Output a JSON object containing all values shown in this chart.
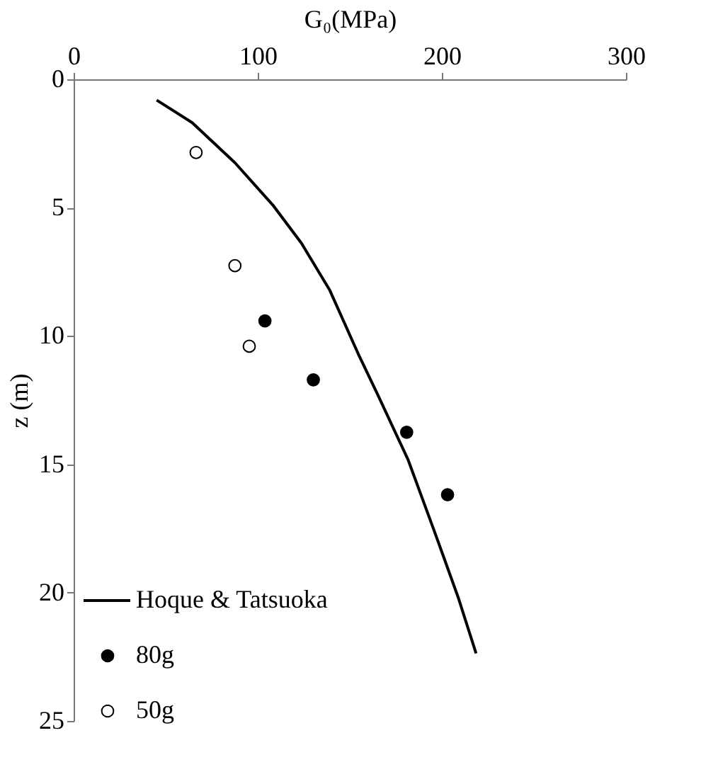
{
  "chart_data": {
    "type": "scatter",
    "xlabel": "G₀(MPa)",
    "ylabel": "z (m)",
    "xlim": [
      0,
      300
    ],
    "xticks": [
      0,
      100,
      200,
      300
    ],
    "ylim": [
      25,
      0
    ],
    "yticks": [
      0,
      5,
      10,
      15,
      20,
      25
    ],
    "grid": false,
    "legend": "bottom left",
    "series": [
      {
        "name": "Hoque & Tatsuoka",
        "type": "line",
        "color": "#000000",
        "line_style": "solid",
        "x": [
          45.1,
          64.4,
          87.6,
          108.2,
          123.7,
          139,
          154.6,
          165,
          181.7,
          195.9,
          208.8,
          218.6
        ],
        "values": [
          0.81,
          1.69,
          3.25,
          4.9,
          6.38,
          8.2,
          10.7,
          12.26,
          14.83,
          17.6,
          20.17,
          22.37
        ]
      },
      {
        "name": "80g",
        "marker": "circle",
        "color": "#000000",
        "x": [
          103.9,
          130.2,
          180.9,
          203.1
        ],
        "values": [
          9.41,
          11.71,
          13.75,
          16.19
        ]
      },
      {
        "name": "50g",
        "marker": "circle",
        "color": "#ffffff",
        "x": [
          66.5,
          87.6,
          95.4
        ],
        "values": [
          2.85,
          7.26,
          10.4
        ]
      }
    ]
  }
}
